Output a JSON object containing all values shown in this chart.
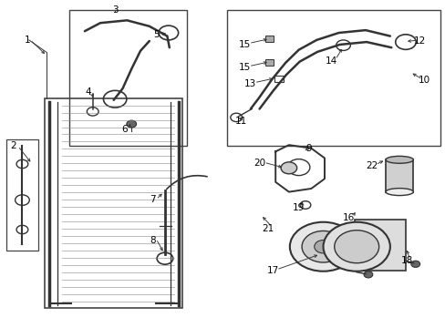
{
  "bg_color": "#ffffff",
  "fig_width": 4.89,
  "fig_height": 3.6,
  "dpi": 100,
  "line_color": "#333333",
  "text_color": "#000000",
  "label_fontsize": 7.5
}
